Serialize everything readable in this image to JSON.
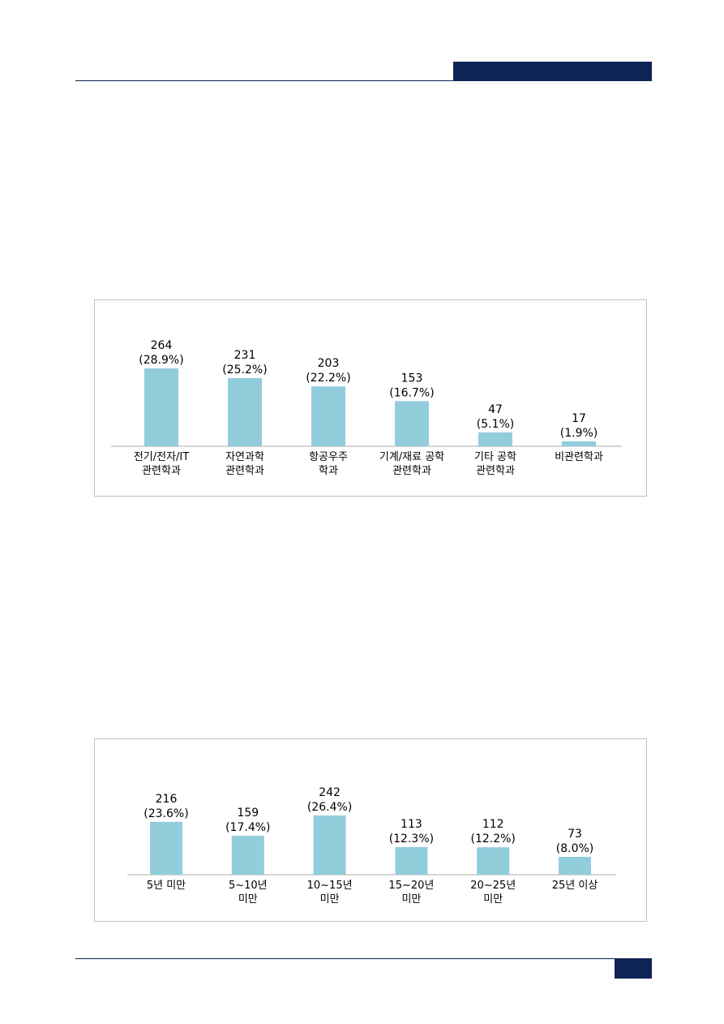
{
  "colors": {
    "accent": "#0e2356",
    "bar": "#92cddc",
    "axis": "#c8c8c8"
  },
  "chart_data": [
    {
      "type": "bar",
      "title": "",
      "xlabel": "",
      "ylabel": "",
      "categories": [
        [
          "전기/전자/IT",
          "관련학과"
        ],
        [
          "자연과학",
          "관련학과"
        ],
        [
          "항공우주",
          "학과"
        ],
        [
          "기계/재료 공학",
          "관련학과"
        ],
        [
          "기타 공학",
          "관련학과"
        ],
        [
          "비관련학과"
        ]
      ],
      "values": [
        264,
        231,
        203,
        153,
        47,
        17
      ],
      "percent_labels": [
        "(28.9%)",
        "(25.2%)",
        "(22.2%)",
        "(16.7%)",
        "(5.1%)",
        "(1.9%)"
      ],
      "ylim": [
        0,
        264
      ],
      "grid": false,
      "legend": "none"
    },
    {
      "type": "bar",
      "title": "",
      "xlabel": "",
      "ylabel": "",
      "categories": [
        [
          "5년 미만"
        ],
        [
          "5~10년",
          "미만"
        ],
        [
          "10~15년",
          "미만"
        ],
        [
          "15~20년",
          "미만"
        ],
        [
          "20~25년",
          "미만"
        ],
        [
          "25년 이상"
        ]
      ],
      "values": [
        216,
        159,
        242,
        113,
        112,
        73
      ],
      "percent_labels": [
        "(23.6%)",
        "(17.4%)",
        "(26.4%)",
        "(12.3%)",
        "(12.2%)",
        "(8.0%)"
      ],
      "ylim": [
        0,
        242
      ],
      "grid": false,
      "legend": "none"
    }
  ]
}
